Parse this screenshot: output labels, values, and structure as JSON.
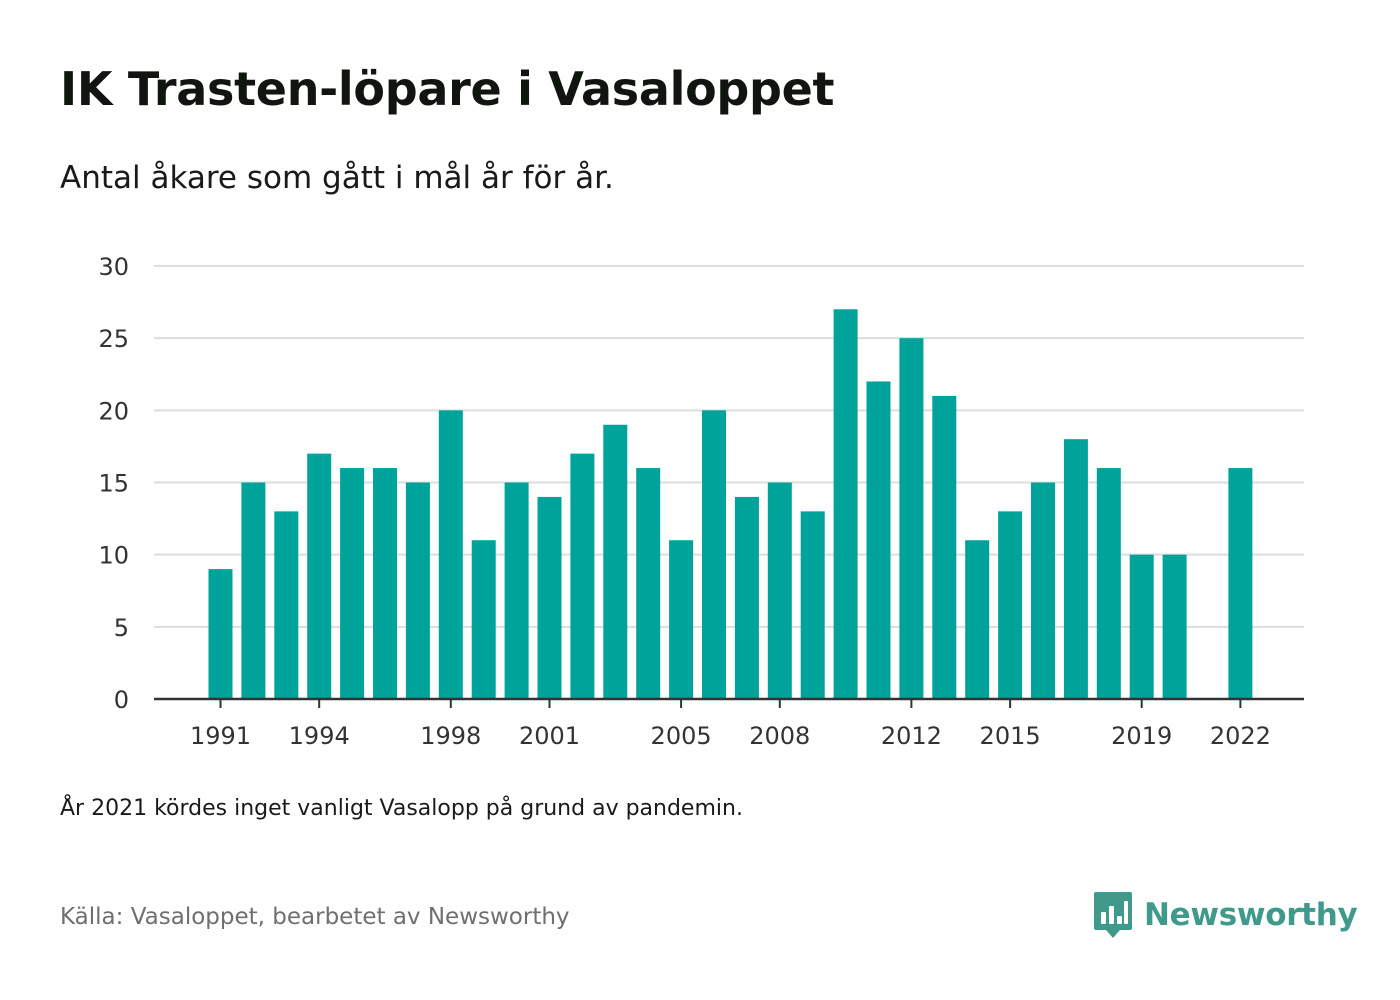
{
  "title": "IK Trasten-löpare i Vasaloppet",
  "subtitle": "Antal åkare som gått i mål år för år.",
  "note": "År 2021 kördes inget vanligt Vasalopp på grund av pandemin.",
  "source": "Källa: Vasaloppet, bearbetet av Newsworthy",
  "brand": {
    "name": "Newsworthy",
    "icon": "newsworthy-logo-icon"
  },
  "colors": {
    "bar": "#00a39a",
    "grid": "#dddddd",
    "axis": "#333333",
    "brand": "#3f9a8c"
  },
  "chart_data": {
    "type": "bar",
    "title": "IK Trasten-löpare i Vasaloppet",
    "xlabel": "",
    "ylabel": "",
    "ylim": [
      0,
      30
    ],
    "yticks": [
      0,
      5,
      10,
      15,
      20,
      25,
      30
    ],
    "xticks": [
      1991,
      1994,
      1998,
      2001,
      2005,
      2008,
      2012,
      2015,
      2019,
      2022
    ],
    "grid": true,
    "categories": [
      1991,
      1992,
      1993,
      1994,
      1995,
      1996,
      1997,
      1998,
      1999,
      2000,
      2001,
      2002,
      2003,
      2004,
      2005,
      2006,
      2007,
      2008,
      2009,
      2010,
      2011,
      2012,
      2013,
      2014,
      2015,
      2016,
      2017,
      2018,
      2019,
      2020,
      2021,
      2022
    ],
    "values": [
      9,
      15,
      13,
      17,
      16,
      16,
      15,
      20,
      11,
      15,
      14,
      17,
      19,
      16,
      11,
      20,
      14,
      15,
      13,
      27,
      22,
      25,
      21,
      11,
      13,
      15,
      18,
      16,
      10,
      10,
      null,
      16
    ]
  }
}
